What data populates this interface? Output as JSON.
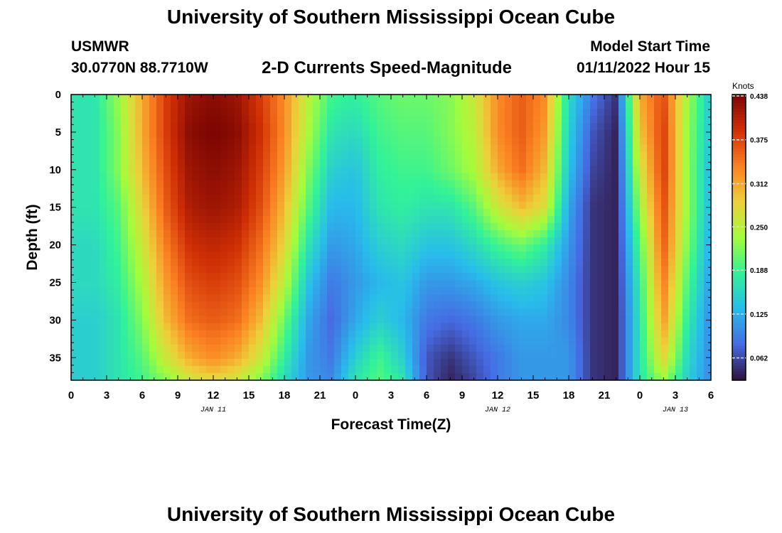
{
  "header": {
    "title": "University of Southern Mississippi Ocean Cube",
    "station": "USMWR",
    "coordinates": "30.0770N  88.7710W",
    "subtitle": "2-D Currents Speed-Magnitude",
    "model_start_label": "Model Start Time",
    "model_start_value": "01/11/2022 Hour 15"
  },
  "footer": {
    "title": "University of Southern Mississippi Ocean Cube"
  },
  "chart_data": {
    "type": "heatmap",
    "xlabel": "Forecast Time(Z)",
    "ylabel": "Depth (ft)",
    "x_tick_labels": [
      "0",
      "3",
      "6",
      "9",
      "12",
      "15",
      "18",
      "21",
      "0",
      "3",
      "6",
      "9",
      "12",
      "15",
      "18",
      "21",
      "0",
      "3",
      "6"
    ],
    "date_labels": [
      {
        "label": "JAN 11",
        "hour": 12
      },
      {
        "label": "JAN 12",
        "hour": 36
      },
      {
        "label": "JAN 13",
        "hour": 51
      }
    ],
    "x_range_hours": [
      0,
      54
    ],
    "y_ticks": [
      0,
      5,
      10,
      15,
      20,
      25,
      30,
      35
    ],
    "ylim": [
      0,
      38
    ],
    "y_inverted": true,
    "colorbar": {
      "title": "Knots",
      "ticks": [
        "0.438",
        "0.375",
        "0.312",
        "0.250",
        "0.188",
        "0.125",
        "0.062"
      ],
      "tick_values": [
        0.438,
        0.375,
        0.312,
        0.25,
        0.188,
        0.125,
        0.062
      ],
      "min": 0.03,
      "max": 0.44,
      "colormap": "turbo"
    },
    "grid_hours": [
      0,
      2,
      4,
      6,
      8,
      10,
      12,
      14,
      16,
      18,
      20,
      22,
      24,
      26,
      28,
      30,
      32,
      34,
      36,
      38,
      40,
      42,
      44,
      46,
      48,
      50,
      52,
      54
    ],
    "grid_depths": [
      0,
      5,
      10,
      15,
      20,
      25,
      30,
      35,
      38
    ],
    "speed_knots": [
      [
        0.17,
        0.17,
        0.17,
        0.17,
        0.16,
        0.16,
        0.15,
        0.15,
        0.15
      ],
      [
        0.17,
        0.17,
        0.17,
        0.17,
        0.16,
        0.16,
        0.15,
        0.15,
        0.15
      ],
      [
        0.23,
        0.22,
        0.22,
        0.2,
        0.19,
        0.18,
        0.17,
        0.17,
        0.17
      ],
      [
        0.31,
        0.31,
        0.3,
        0.28,
        0.26,
        0.24,
        0.22,
        0.2,
        0.19
      ],
      [
        0.38,
        0.38,
        0.37,
        0.36,
        0.34,
        0.32,
        0.3,
        0.26,
        0.22
      ],
      [
        0.42,
        0.43,
        0.42,
        0.41,
        0.39,
        0.37,
        0.35,
        0.31,
        0.26
      ],
      [
        0.43,
        0.44,
        0.43,
        0.42,
        0.4,
        0.38,
        0.36,
        0.33,
        0.28
      ],
      [
        0.42,
        0.43,
        0.42,
        0.41,
        0.39,
        0.37,
        0.35,
        0.31,
        0.26
      ],
      [
        0.38,
        0.39,
        0.38,
        0.37,
        0.35,
        0.33,
        0.3,
        0.26,
        0.22
      ],
      [
        0.33,
        0.33,
        0.32,
        0.3,
        0.28,
        0.25,
        0.21,
        0.18,
        0.16
      ],
      [
        0.25,
        0.24,
        0.22,
        0.2,
        0.17,
        0.14,
        0.12,
        0.11,
        0.11
      ],
      [
        0.19,
        0.17,
        0.15,
        0.13,
        0.11,
        0.09,
        0.08,
        0.09,
        0.1
      ],
      [
        0.18,
        0.16,
        0.14,
        0.13,
        0.12,
        0.11,
        0.12,
        0.15,
        0.17
      ],
      [
        0.2,
        0.19,
        0.18,
        0.17,
        0.15,
        0.13,
        0.15,
        0.19,
        0.2
      ],
      [
        0.21,
        0.2,
        0.19,
        0.18,
        0.16,
        0.14,
        0.13,
        0.15,
        0.17
      ],
      [
        0.21,
        0.2,
        0.19,
        0.17,
        0.14,
        0.11,
        0.09,
        0.07,
        0.07
      ],
      [
        0.22,
        0.22,
        0.21,
        0.17,
        0.14,
        0.11,
        0.08,
        0.05,
        0.04
      ],
      [
        0.26,
        0.25,
        0.24,
        0.2,
        0.16,
        0.12,
        0.09,
        0.07,
        0.06
      ],
      [
        0.33,
        0.33,
        0.31,
        0.26,
        0.19,
        0.14,
        0.11,
        0.09,
        0.09
      ],
      [
        0.36,
        0.36,
        0.35,
        0.3,
        0.21,
        0.15,
        0.12,
        0.11,
        0.11
      ],
      [
        0.33,
        0.32,
        0.3,
        0.27,
        0.18,
        0.14,
        0.12,
        0.11,
        0.11
      ],
      [
        0.16,
        0.15,
        0.14,
        0.12,
        0.11,
        0.1,
        0.1,
        0.11,
        0.11
      ],
      [
        0.09,
        0.07,
        0.06,
        0.05,
        0.05,
        0.05,
        0.05,
        0.05,
        0.05
      ],
      [
        0.05,
        0.04,
        0.04,
        0.04,
        0.04,
        0.04,
        0.04,
        0.04,
        0.04
      ],
      [
        0.31,
        0.29,
        0.26,
        0.23,
        0.2,
        0.18,
        0.17,
        0.17,
        0.17
      ],
      [
        0.37,
        0.38,
        0.38,
        0.37,
        0.36,
        0.34,
        0.32,
        0.28,
        0.23
      ],
      [
        0.24,
        0.23,
        0.23,
        0.23,
        0.22,
        0.2,
        0.18,
        0.16,
        0.15
      ],
      [
        0.14,
        0.14,
        0.13,
        0.13,
        0.12,
        0.11,
        0.1,
        0.1,
        0.1
      ]
    ]
  }
}
